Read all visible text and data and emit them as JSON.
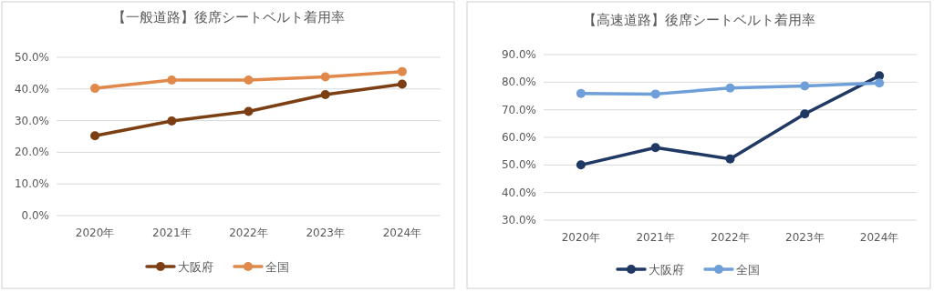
{
  "chart_data": [
    {
      "type": "line",
      "title": "【一般道路】後席シートベルト着用率",
      "categories": [
        "2020年",
        "2021年",
        "2022年",
        "2023年",
        "2024年"
      ],
      "series": [
        {
          "name": "大阪府",
          "color": "#7b3f13",
          "values": [
            25.2,
            29.9,
            32.9,
            38.2,
            41.5
          ]
        },
        {
          "name": "全国",
          "color": "#e0894a",
          "values": [
            40.2,
            42.8,
            42.8,
            43.8,
            45.5
          ]
        }
      ],
      "ylim": [
        0,
        50
      ],
      "yticks": [
        {
          "value": 0,
          "label": "0.0%"
        },
        {
          "value": 10,
          "label": "10.0%"
        },
        {
          "value": 20,
          "label": "20.0%"
        },
        {
          "value": 30,
          "label": "30.0%"
        },
        {
          "value": 40,
          "label": "40.0%"
        },
        {
          "value": 50,
          "label": "50.0%"
        }
      ],
      "grid": "y",
      "legend": "bottom",
      "marker": "circle",
      "line_style": "solid"
    },
    {
      "type": "line",
      "title": "【高速道路】後席シートベルト着用率",
      "categories": [
        "2020年",
        "2021年",
        "2022年",
        "2023年",
        "2024年"
      ],
      "series": [
        {
          "name": "大阪府",
          "color": "#203864",
          "values": [
            50.0,
            56.3,
            52.2,
            68.5,
            82.3
          ]
        },
        {
          "name": "全国",
          "color": "#6f9fd8",
          "values": [
            75.9,
            75.7,
            77.9,
            78.6,
            79.7
          ]
        }
      ],
      "ylim": [
        30,
        90
      ],
      "yticks": [
        {
          "value": 30,
          "label": "30.0%"
        },
        {
          "value": 40,
          "label": "40.0%"
        },
        {
          "value": 50,
          "label": "50.0%"
        },
        {
          "value": 60,
          "label": "60.0%"
        },
        {
          "value": 70,
          "label": "70.0%"
        },
        {
          "value": 80,
          "label": "80.0%"
        },
        {
          "value": 90,
          "label": "90.0%"
        }
      ],
      "grid": "y",
      "legend": "bottom",
      "marker": "circle",
      "line_style": "solid"
    }
  ]
}
